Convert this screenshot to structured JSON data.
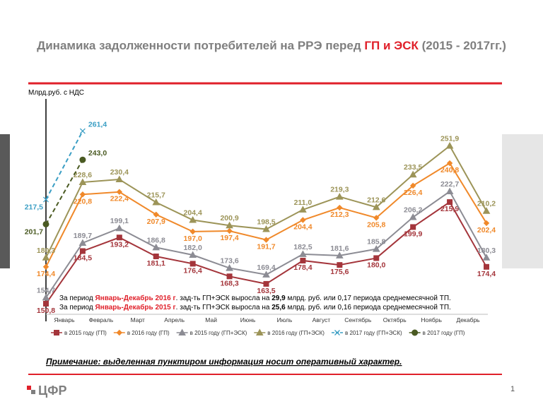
{
  "chart_data": {
    "type": "line",
    "title_parts": [
      {
        "text": "Динамика задолженности потребителей на РРЭ перед ",
        "color": "#7f7f7f"
      },
      {
        "text": "ГП и ЭСК",
        "color": "#e0202a"
      },
      {
        "text": " (2015 - 2017гг.)",
        "color": "#7f7f7f"
      }
    ],
    "y_label": "Млрд.руб. с НДС",
    "categories": [
      null,
      "Январь",
      "Февраль",
      "Март",
      "Апрель",
      "Май",
      "Июнь",
      "Июль",
      "Август",
      "Сентябрь",
      "Октябрь",
      "Ноябрь",
      "Декабрь"
    ],
    "ylim": [
      144,
      282
    ],
    "series": [
      {
        "name": "в 2015 году (ГП)",
        "color": "#a4353b",
        "marker": "square",
        "label_pos": "below",
        "values": [
          150.8,
          184.5,
          193.2,
          181.1,
          176.4,
          168.3,
          163.5,
          178.4,
          175.6,
          180.0,
          199.9,
          215.9,
          174.4
        ],
        "value_labels": [
          "150,8",
          "184,5",
          "193,2",
          "181,1",
          "176,4",
          "168,3",
          "163,5",
          "178,4",
          "175,6",
          "180,0",
          "199,9",
          "215,9",
          "174,4"
        ]
      },
      {
        "name": "в 2016 году (ГП)",
        "color": "#f0892a",
        "marker": "diamond",
        "label_pos": "below",
        "values": [
          174.4,
          220.8,
          222.4,
          207.9,
          197.0,
          197.4,
          191.7,
          204.4,
          212.3,
          205.8,
          226.4,
          240.8,
          202.4
        ],
        "value_labels": [
          "174,4",
          "220,8",
          "222,4",
          "207,9",
          "197,0",
          "197,4",
          "191,7",
          "204,4",
          "212,3",
          "205,8",
          "226,4",
          "240,8",
          "202,4"
        ]
      },
      {
        "name": "в 2015 году (ГП+ЭСК)",
        "color": "#8c8c94",
        "marker": "triangle",
        "label_pos": "above",
        "values": [
          154.7,
          189.7,
          199.1,
          186.8,
          182.0,
          173.6,
          169.4,
          182.5,
          181.6,
          185.8,
          206.2,
          222.7,
          180.3
        ],
        "value_labels": [
          "154,7",
          "189,7",
          "199,1",
          "186,8",
          "182,0",
          "173,6",
          "169,4",
          "182,5",
          "181,6",
          "185,8",
          "206,2",
          "222,7",
          "180,3"
        ]
      },
      {
        "name": "в 2016 году (ГП+ЭСК)",
        "color": "#9c9458",
        "marker": "triangle",
        "label_pos": "above",
        "values": [
          180.3,
          228.6,
          230.4,
          215.7,
          204.4,
          200.9,
          198.5,
          211.0,
          219.3,
          212.6,
          233.5,
          251.9,
          210.2
        ],
        "value_labels": [
          "180,3",
          "228,6",
          "230,4",
          "215,7",
          "204,4",
          "200,9",
          "198,5",
          "211,0",
          "219,3",
          "212,6",
          "233,5",
          "251,9",
          "210,2"
        ]
      },
      {
        "name": "в 2017 году (ГП+ЭСК)",
        "color": "#3a9ec4",
        "marker": "cross",
        "dashed": true,
        "label_pos": "side",
        "values": [
          217.5,
          261.4,
          null,
          null,
          null,
          null,
          null,
          null,
          null,
          null,
          null,
          null,
          null
        ],
        "value_labels": [
          "217,5",
          "261,4",
          null,
          null,
          null,
          null,
          null,
          null,
          null,
          null,
          null,
          null,
          null
        ]
      },
      {
        "name": "в 2017 году (ГП)",
        "color": "#4a5a22",
        "marker": "circle",
        "dashed": true,
        "label_pos": "side",
        "values": [
          201.7,
          243.0,
          null,
          null,
          null,
          null,
          null,
          null,
          null,
          null,
          null,
          null,
          null
        ],
        "value_labels": [
          "201,7",
          "243,0",
          null,
          null,
          null,
          null,
          null,
          null,
          null,
          null,
          null,
          null,
          null
        ]
      }
    ],
    "notes": [
      [
        {
          "text": "За период "
        },
        {
          "text": "Январь-Декабрь 2016 г",
          "bold": true,
          "color": "#e0202a"
        },
        {
          "text": ". зад-ть ГП+ЭСК выросла на "
        },
        {
          "text": "29,9",
          "bold": true
        },
        {
          "text": " млрд. руб. или 0,17 периода среднемесячной ТП."
        }
      ],
      [
        {
          "text": "За период "
        },
        {
          "text": "Январь-Декабрь 2015 г",
          "bold": true,
          "color": "#e0202a"
        },
        {
          "text": ". зад-ть ГП+ЭСК выросла на "
        },
        {
          "text": "25,6",
          "bold": true
        },
        {
          "text": " млрд. руб. или 0,16 периода среднемесячной ТП."
        }
      ]
    ],
    "footnote": "Примечание: выделенная пунктиром информация носит оперативный характер.",
    "logo": "ЦФР",
    "page_number": "1"
  }
}
